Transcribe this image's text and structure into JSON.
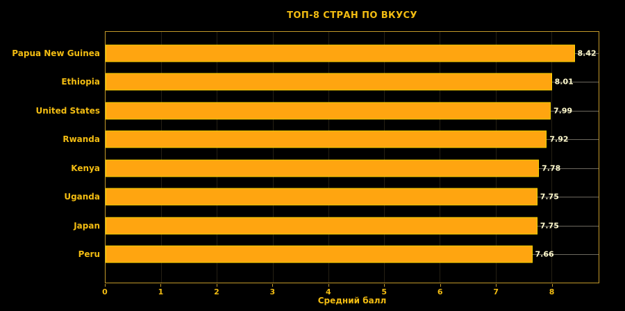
{
  "chart_data": {
    "type": "bar",
    "orientation": "horizontal",
    "title": "ТОП-8 СТРАН ПО ВКУСУ",
    "xlabel": "Средний балл",
    "categories": [
      "Papua New Guinea",
      "Ethiopia",
      "United States",
      "Rwanda",
      "Kenya",
      "Uganda",
      "Japan",
      "Peru"
    ],
    "values": [
      8.42,
      8.01,
      7.99,
      7.92,
      7.78,
      7.75,
      7.75,
      7.66
    ],
    "value_labels": [
      "8.42",
      "8.01",
      "7.99",
      "7.92",
      "7.78",
      "7.75",
      "7.75",
      "7.66"
    ],
    "xticks": [
      0,
      1,
      2,
      3,
      4,
      5,
      6,
      7,
      8
    ],
    "xlim": [
      0,
      8.85
    ],
    "grid": true,
    "legend": false,
    "colors": {
      "background": "#000000",
      "bar_fill": "#ffa510",
      "bar_edge": "#ffd700",
      "gold_text": "#f2bc12",
      "value_text": "#fffacd",
      "plot_border": "#c49a2a",
      "vgrid": "#262014",
      "hgrid": "#6e6a60"
    }
  }
}
